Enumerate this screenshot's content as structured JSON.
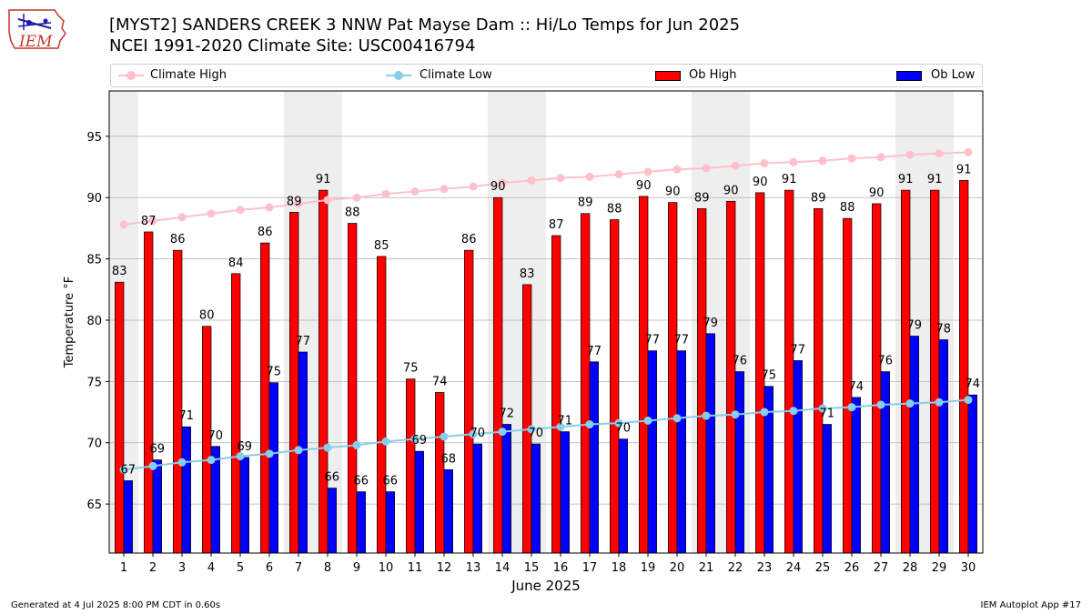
{
  "header": {
    "title_line1": "[MYST2] SANDERS CREEK 3 NNW Pat Mayse Dam :: Hi/Lo Temps for Jun 2025",
    "title_line2": "NCEI 1991-2020 Climate Site: USC00416794"
  },
  "logo": {
    "text": "IEM",
    "icon": "iowa-state-map-icon"
  },
  "legend": [
    {
      "label": "Climate High",
      "color": "#ffc0cb",
      "kind": "line-marker"
    },
    {
      "label": "Climate Low",
      "color": "#87ceeb",
      "kind": "line-marker"
    },
    {
      "label": "Ob High",
      "color": "#ff0000",
      "kind": "bar"
    },
    {
      "label": "Ob Low",
      "color": "#0000ff",
      "kind": "bar"
    }
  ],
  "footer": {
    "left": "Generated at 4 Jul 2025 8:00 PM CDT in 0.60s",
    "right": "IEM Autoplot App #17"
  },
  "chart_data": {
    "type": "bar",
    "xlabel": "June 2025",
    "ylabel": "Temperature °F",
    "categories": [
      "1",
      "2",
      "3",
      "4",
      "5",
      "6",
      "7",
      "8",
      "9",
      "10",
      "11",
      "12",
      "13",
      "14",
      "15",
      "16",
      "17",
      "18",
      "19",
      "20",
      "21",
      "22",
      "23",
      "24",
      "25",
      "26",
      "27",
      "28",
      "29",
      "30"
    ],
    "ylim": [
      61,
      98.7
    ],
    "yticks": [
      65,
      70,
      75,
      80,
      85,
      90,
      95
    ],
    "grid": "horizontal",
    "weekend_shading": [
      [
        1,
        1
      ],
      [
        7,
        8
      ],
      [
        14,
        15
      ],
      [
        21,
        22
      ],
      [
        28,
        29
      ]
    ],
    "series": [
      {
        "name": "Ob High",
        "type": "bar",
        "color": "#ff0000",
        "values": [
          83.1,
          87.2,
          85.7,
          79.5,
          83.8,
          86.3,
          88.8,
          90.6,
          87.9,
          85.2,
          75.2,
          74.1,
          85.7,
          90.0,
          82.9,
          86.9,
          88.7,
          88.2,
          90.1,
          89.6,
          89.1,
          89.7,
          90.4,
          90.6,
          89.1,
          88.3,
          89.5,
          90.6,
          90.6,
          91.4
        ],
        "labels": [
          "83",
          "87",
          "86",
          "80",
          "84",
          "86",
          "89",
          "91",
          "88",
          "85",
          "75",
          "74",
          "86",
          "90",
          "83",
          "87",
          "89",
          "88",
          "90",
          "90",
          "89",
          "90",
          "90",
          "91",
          "89",
          "88",
          "90",
          "91",
          "91",
          "91"
        ]
      },
      {
        "name": "Ob Low",
        "type": "bar",
        "color": "#0000ff",
        "values": [
          66.9,
          68.6,
          71.3,
          69.7,
          68.8,
          74.9,
          77.4,
          66.3,
          66.0,
          66.0,
          69.3,
          67.8,
          69.9,
          71.5,
          69.9,
          70.9,
          76.6,
          70.3,
          77.5,
          77.5,
          78.9,
          75.8,
          74.6,
          76.7,
          71.5,
          73.7,
          75.8,
          78.7,
          78.4,
          73.9
        ],
        "labels": [
          "67",
          "69",
          "71",
          "70",
          "69",
          "75",
          "77",
          "66",
          "66",
          "66",
          "69",
          "68",
          "70",
          "72",
          "70",
          "71",
          "77",
          "70",
          "77",
          "77",
          "79",
          "76",
          "75",
          "77",
          "71",
          "74",
          "76",
          "79",
          "78",
          "74"
        ]
      },
      {
        "name": "Climate High",
        "type": "line",
        "color": "#ffc0cb",
        "values": [
          87.8,
          88.1,
          88.4,
          88.7,
          89.0,
          89.2,
          89.5,
          89.8,
          90.0,
          90.3,
          90.5,
          90.7,
          90.9,
          91.2,
          91.4,
          91.6,
          91.7,
          91.9,
          92.1,
          92.3,
          92.4,
          92.6,
          92.8,
          92.9,
          93.0,
          93.2,
          93.3,
          93.5,
          93.6,
          93.7
        ]
      },
      {
        "name": "Climate Low",
        "type": "line",
        "color": "#87ceeb",
        "values": [
          67.8,
          68.1,
          68.4,
          68.6,
          68.9,
          69.1,
          69.4,
          69.6,
          69.8,
          70.1,
          70.3,
          70.5,
          70.7,
          70.9,
          71.1,
          71.3,
          71.5,
          71.6,
          71.8,
          72.0,
          72.2,
          72.3,
          72.5,
          72.6,
          72.8,
          72.9,
          73.1,
          73.2,
          73.3,
          73.5
        ]
      }
    ]
  }
}
